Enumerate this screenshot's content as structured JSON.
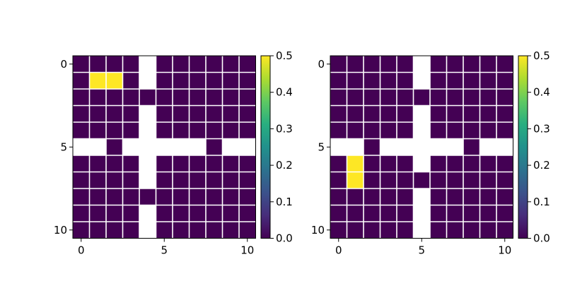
{
  "chart_data": [
    {
      "type": "heatmap",
      "rows": 11,
      "cols": 11,
      "x_ticks": [
        0,
        5,
        10
      ],
      "y_ticks": [
        0,
        5,
        10
      ],
      "wall_color": "#ffffff",
      "walls": [
        [
          0,
          4
        ],
        [
          1,
          4
        ],
        [
          3,
          4
        ],
        [
          4,
          4
        ],
        [
          6,
          4
        ],
        [
          7,
          4
        ],
        [
          9,
          4
        ],
        [
          10,
          4
        ],
        [
          5,
          0
        ],
        [
          5,
          1
        ],
        [
          5,
          3
        ],
        [
          5,
          4
        ],
        [
          5,
          5
        ],
        [
          5,
          6
        ],
        [
          5,
          7
        ],
        [
          5,
          9
        ],
        [
          5,
          10
        ]
      ],
      "highlight_cells": [
        {
          "row": 1,
          "col": 1,
          "value": 0.5
        },
        {
          "row": 1,
          "col": 2,
          "value": 0.5
        }
      ],
      "base_value": 0.0,
      "colorbar": {
        "min": 0.0,
        "max": 0.5,
        "ticks": [
          "0.0",
          "0.1",
          "0.2",
          "0.3",
          "0.4",
          "0.5"
        ]
      }
    },
    {
      "type": "heatmap",
      "rows": 11,
      "cols": 11,
      "x_ticks": [
        0,
        5,
        10
      ],
      "y_ticks": [
        0,
        5,
        10
      ],
      "wall_color": "#ffffff",
      "walls": [
        [
          0,
          5
        ],
        [
          1,
          5
        ],
        [
          3,
          5
        ],
        [
          4,
          5
        ],
        [
          5,
          5
        ],
        [
          6,
          5
        ],
        [
          8,
          5
        ],
        [
          9,
          5
        ],
        [
          10,
          5
        ],
        [
          5,
          0
        ],
        [
          5,
          1
        ],
        [
          5,
          3
        ],
        [
          5,
          4
        ],
        [
          5,
          6
        ],
        [
          5,
          7
        ],
        [
          5,
          9
        ],
        [
          5,
          10
        ]
      ],
      "highlight_cells": [
        {
          "row": 6,
          "col": 1,
          "value": 0.5
        },
        {
          "row": 7,
          "col": 1,
          "value": 0.5
        }
      ],
      "base_value": 0.0,
      "colorbar": {
        "min": 0.0,
        "max": 0.5,
        "ticks": [
          "0.0",
          "0.1",
          "0.2",
          "0.3",
          "0.4",
          "0.5"
        ]
      }
    }
  ],
  "colormap": "viridis",
  "colors": {
    "low": "#440154",
    "high": "#fde725",
    "grid_line": "#ffffff"
  }
}
